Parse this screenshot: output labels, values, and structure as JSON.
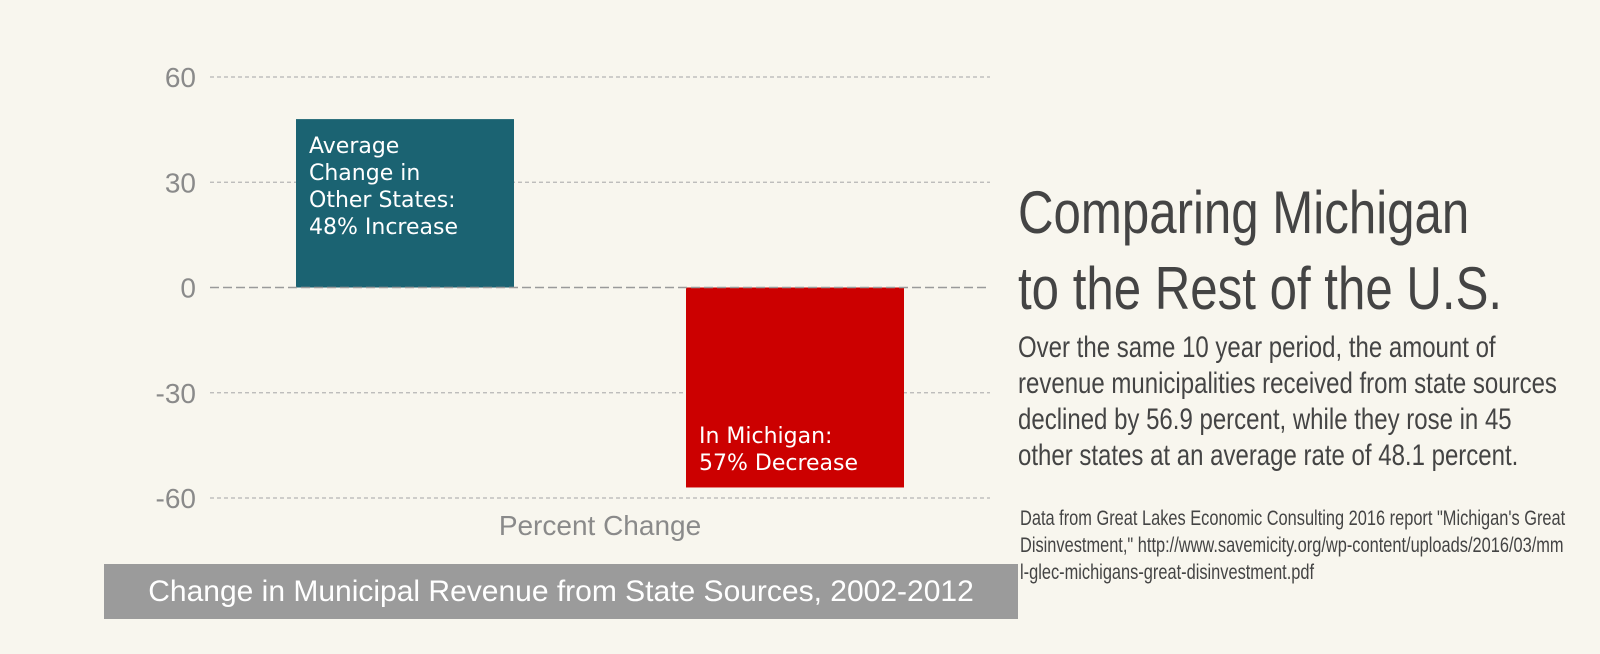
{
  "chart_data": {
    "type": "bar",
    "categories": [
      "Average Change in Other States",
      "In Michigan"
    ],
    "values": [
      48,
      -57
    ],
    "colors": [
      "#1b6372",
      "#cc0000"
    ],
    "bar_labels": [
      [
        "Average",
        "Change in",
        "Other States:",
        "48% Increase"
      ],
      [
        "In Michigan:",
        "57% Decrease"
      ]
    ],
    "ylim": [
      -60,
      60
    ],
    "yticks": [
      60,
      30,
      0,
      -30,
      -60
    ],
    "grid": true,
    "xlabel": "Percent Change",
    "title": "Change in Municipal Revenue from State Sources, 2002-2012"
  },
  "headline": [
    "Comparing Michigan",
    "to the Rest of the U.S."
  ],
  "summary": "Over the same 10 year period, the amount of revenue municipalities received from state sources declined by 56.9 percent, while they rose in 45 other states at an average rate of 48.1 percent.",
  "source_note": "Data from Great Lakes Economic Consulting 2016 report \"Michigan's Great Disinvestment,\" http://www.savemicity.org/wp-content/uploads/2016/03/mml-glec-michigans-great-disinvestment.pdf"
}
